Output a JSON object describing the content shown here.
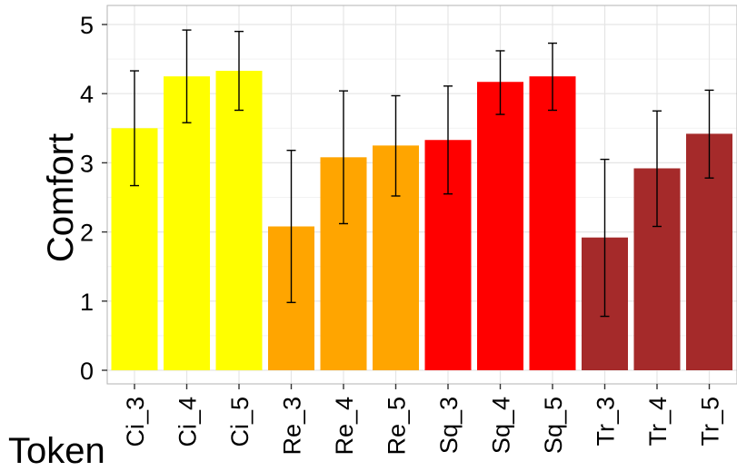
{
  "chart_data": {
    "type": "bar",
    "xlabel": "Token",
    "ylabel": "Comfort",
    "ylim": [
      0,
      5.25
    ],
    "yticks": [
      0,
      1,
      2,
      3,
      4,
      5
    ],
    "grid": true,
    "legend": "none",
    "categories": [
      "Ci_3",
      "Ci_4",
      "Ci_5",
      "Re_3",
      "Re_4",
      "Re_5",
      "Sq_3",
      "Sq_4",
      "Sq_5",
      "Tr_3",
      "Tr_4",
      "Tr_5"
    ],
    "values": [
      3.5,
      4.25,
      4.33,
      2.08,
      3.08,
      3.25,
      3.33,
      4.17,
      4.25,
      1.92,
      2.92,
      3.42
    ],
    "error_low": [
      2.67,
      3.58,
      3.76,
      0.98,
      2.12,
      2.52,
      2.55,
      3.7,
      3.76,
      0.78,
      2.08,
      2.78
    ],
    "error_high": [
      4.33,
      4.92,
      4.9,
      3.18,
      4.04,
      3.97,
      4.11,
      4.62,
      4.73,
      3.05,
      3.75,
      4.05
    ],
    "colors": [
      "#ffff00",
      "#ffff00",
      "#ffff00",
      "#ffa500",
      "#ffa500",
      "#ffa500",
      "#ff0000",
      "#ff0000",
      "#ff0000",
      "#a52a2a",
      "#a52a2a",
      "#a52a2a"
    ]
  }
}
